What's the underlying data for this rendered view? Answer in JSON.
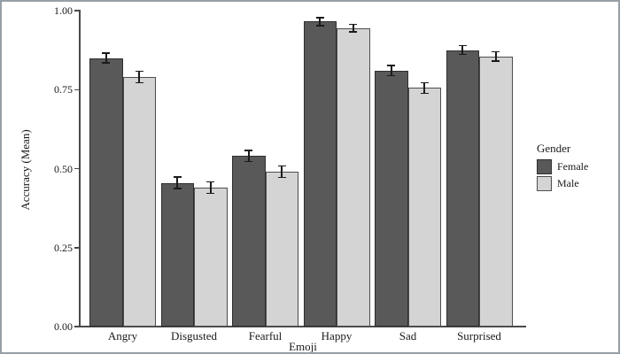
{
  "chart_data": {
    "type": "bar",
    "title": "",
    "xlabel": "Emoji",
    "ylabel": "Accuracy (Mean)",
    "ylim": [
      0.0,
      1.0
    ],
    "yticks": [
      0.0,
      0.25,
      0.5,
      0.75,
      1.0
    ],
    "ytick_labels": [
      "0.00",
      "0.25",
      "0.50",
      "0.75",
      "1.00"
    ],
    "categories": [
      "Angry",
      "Disgusted",
      "Fearful",
      "Happy",
      "Sad",
      "Surprised"
    ],
    "series": [
      {
        "name": "Female",
        "fill": "#595959",
        "stroke": "#2f2f2f",
        "values": [
          0.85,
          0.455,
          0.54,
          0.965,
          0.81,
          0.875
        ],
        "errors": [
          0.015,
          0.018,
          0.018,
          0.012,
          0.016,
          0.014
        ]
      },
      {
        "name": "Male",
        "fill": "#d4d4d4",
        "stroke": "#4d4d4d",
        "values": [
          0.79,
          0.44,
          0.49,
          0.945,
          0.755,
          0.855
        ],
        "errors": [
          0.018,
          0.018,
          0.018,
          0.012,
          0.017,
          0.015
        ]
      }
    ],
    "legend": {
      "title": "Gender",
      "position": "right"
    },
    "grid": false,
    "error_bar_color": "#1b1b1b"
  }
}
